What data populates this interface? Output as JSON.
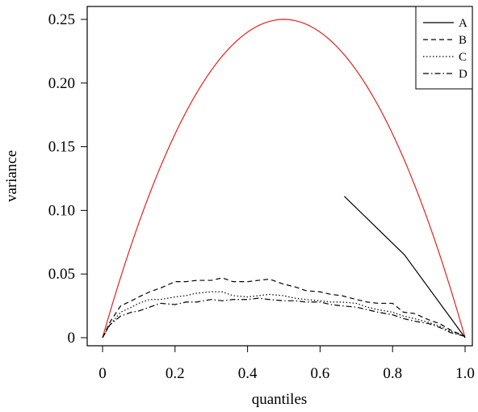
{
  "chart_data": {
    "type": "line",
    "title": "",
    "xlabel": "quantiles",
    "ylabel": "variance",
    "xlim": [
      0,
      1
    ],
    "ylim": [
      0,
      0.25
    ],
    "grid": false,
    "legend_position": "top-right",
    "xticks": [
      0,
      0.2,
      0.4,
      0.6,
      0.8,
      1.0
    ],
    "xtick_labels": [
      "0",
      "0.2",
      "0.4",
      "0.6",
      "0.8",
      "1.0"
    ],
    "yticks": [
      0,
      0.05,
      0.1,
      0.15,
      0.2,
      0.25
    ],
    "ytick_labels": [
      "0",
      "0.05",
      "0.10",
      "0.15",
      "0.20",
      "0.25"
    ],
    "reference_curve": {
      "color": "#e8201e",
      "formula": "p(1-p)",
      "x": [
        0,
        0.05,
        0.1,
        0.15,
        0.2,
        0.25,
        0.3,
        0.35,
        0.4,
        0.45,
        0.5,
        0.55,
        0.6,
        0.65,
        0.7,
        0.75,
        0.8,
        0.85,
        0.9,
        0.95,
        1.0
      ],
      "y": [
        0,
        0.0475,
        0.09,
        0.1275,
        0.16,
        0.1875,
        0.21,
        0.2275,
        0.24,
        0.2475,
        0.25,
        0.2475,
        0.24,
        0.2275,
        0.21,
        0.1875,
        0.16,
        0.1275,
        0.09,
        0.0475,
        0
      ]
    },
    "series": [
      {
        "name": "A",
        "dash": "solid",
        "x": [
          0.667,
          0.833,
          1.0
        ],
        "y": [
          0.111,
          0.065,
          0.0
        ]
      },
      {
        "name": "B",
        "dash": "dashed",
        "x": [
          0,
          0.02,
          0.05,
          0.08,
          0.1,
          0.13,
          0.16,
          0.2,
          0.23,
          0.26,
          0.3,
          0.33,
          0.36,
          0.4,
          0.43,
          0.46,
          0.5,
          0.53,
          0.56,
          0.6,
          0.63,
          0.66,
          0.7,
          0.73,
          0.76,
          0.8,
          0.83,
          0.86,
          0.9,
          0.93,
          0.96,
          1.0
        ],
        "y": [
          0,
          0.012,
          0.025,
          0.029,
          0.032,
          0.036,
          0.039,
          0.044,
          0.044,
          0.045,
          0.045,
          0.047,
          0.044,
          0.044,
          0.045,
          0.046,
          0.042,
          0.04,
          0.037,
          0.036,
          0.034,
          0.033,
          0.03,
          0.028,
          0.027,
          0.027,
          0.02,
          0.019,
          0.014,
          0.011,
          0.006,
          0.001
        ]
      },
      {
        "name": "C",
        "dash": "dotted",
        "x": [
          0,
          0.02,
          0.05,
          0.08,
          0.1,
          0.13,
          0.16,
          0.2,
          0.23,
          0.26,
          0.3,
          0.33,
          0.36,
          0.4,
          0.43,
          0.46,
          0.5,
          0.53,
          0.56,
          0.6,
          0.63,
          0.66,
          0.7,
          0.73,
          0.76,
          0.8,
          0.83,
          0.86,
          0.9,
          0.93,
          0.96,
          1.0
        ],
        "y": [
          0,
          0.01,
          0.02,
          0.024,
          0.027,
          0.03,
          0.03,
          0.032,
          0.033,
          0.035,
          0.036,
          0.036,
          0.033,
          0.032,
          0.033,
          0.034,
          0.033,
          0.031,
          0.03,
          0.029,
          0.028,
          0.028,
          0.027,
          0.024,
          0.022,
          0.02,
          0.017,
          0.015,
          0.012,
          0.009,
          0.005,
          0.001
        ]
      },
      {
        "name": "D",
        "dash": "dashdot",
        "x": [
          0,
          0.02,
          0.05,
          0.08,
          0.1,
          0.13,
          0.16,
          0.2,
          0.23,
          0.26,
          0.3,
          0.33,
          0.36,
          0.4,
          0.43,
          0.46,
          0.5,
          0.53,
          0.56,
          0.6,
          0.63,
          0.66,
          0.7,
          0.73,
          0.76,
          0.8,
          0.83,
          0.86,
          0.9,
          0.93,
          0.96,
          1.0
        ],
        "y": [
          0,
          0.01,
          0.017,
          0.02,
          0.021,
          0.024,
          0.027,
          0.026,
          0.028,
          0.028,
          0.03,
          0.029,
          0.03,
          0.03,
          0.031,
          0.03,
          0.029,
          0.029,
          0.028,
          0.028,
          0.026,
          0.025,
          0.024,
          0.022,
          0.02,
          0.018,
          0.015,
          0.013,
          0.011,
          0.008,
          0.004,
          0.001
        ]
      }
    ],
    "legend": [
      {
        "label": "A",
        "dash": "solid"
      },
      {
        "label": "B",
        "dash": "dashed"
      },
      {
        "label": "C",
        "dash": "dotted"
      },
      {
        "label": "D",
        "dash": "dashdot"
      }
    ]
  }
}
